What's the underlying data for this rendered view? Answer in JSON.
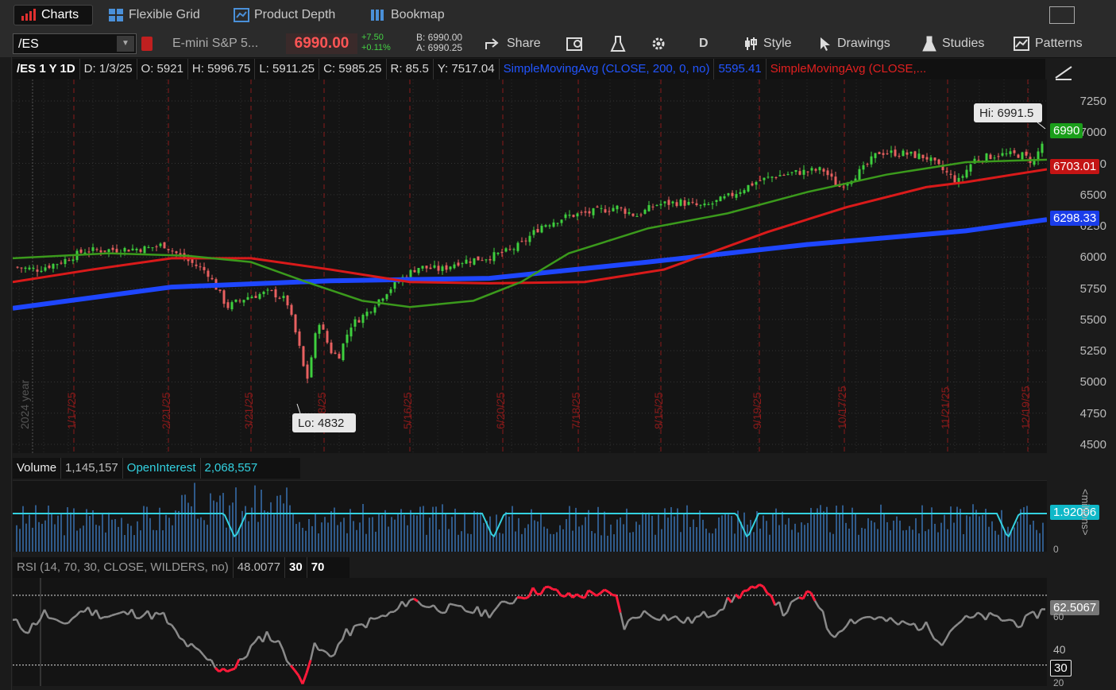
{
  "tabs": [
    {
      "label": "Charts",
      "active": true,
      "icon": "bar-chart-icon"
    },
    {
      "label": "Flexible Grid",
      "active": false,
      "icon": "grid-icon"
    },
    {
      "label": "Product Depth",
      "active": false,
      "icon": "depth-icon"
    },
    {
      "label": "Bookmap",
      "active": false,
      "icon": "bookmap-icon"
    }
  ],
  "toolbar": {
    "symbol": "/ES",
    "description": "E-mini S&P 5...",
    "last_price": "6990.00",
    "net_change": "+7.50",
    "pct_change": "+0.11%",
    "bid": "B: 6990.00",
    "ask": "A: 6990.25",
    "share": "Share",
    "aggregation": "D",
    "style": "Style",
    "drawings": "Drawings",
    "studies": "Studies",
    "patterns": "Patterns"
  },
  "infobar": {
    "title": "/ES 1 Y 1D",
    "date": "D: 1/3/25",
    "open": "O: 5921",
    "high": "H: 5996.75",
    "low": "L: 5911.25",
    "close": "C: 5985.25",
    "range": "R: 85.5",
    "y": "Y: 7517.04",
    "sma200_label": "SimpleMovingAvg (CLOSE, 200, 0, no)",
    "sma200_value": "5595.41",
    "sma_red_label": "SimpleMovingAvg (CLOSE,..."
  },
  "price_axis": {
    "ticks": [
      "7250",
      "7000",
      "6750",
      "6500",
      "6250",
      "6000",
      "5750",
      "5500",
      "5250",
      "5000",
      "4750",
      "4500"
    ],
    "last_badge": "6990",
    "red_badge": "6703.01",
    "blue_badge": "6298.33"
  },
  "annotations": {
    "hi": "Hi: 6991.5",
    "lo": "Lo: 4832"
  },
  "x_labels": [
    "1/17/25",
    "2/21/25",
    "3/21/25",
    "4/18/25",
    "5/16/25",
    "6/20/25",
    "7/18/25",
    "8/15/25",
    "9/19/25",
    "10/17/25",
    "11/21/25",
    "12/19/25"
  ],
  "year_label": "2024 year",
  "volume": {
    "label": "Volume",
    "value": "1,145,157",
    "oi_label": "OpenInterest",
    "oi_value": "2,068,557",
    "badge": "1.92006",
    "unit": "<millions>",
    "zero": "0"
  },
  "rsi": {
    "label": "RSI (14, 70, 30, CLOSE, WILDERS, no)",
    "value": "48.0077",
    "lower": "30",
    "upper": "70",
    "badge": "62.5067",
    "tick_60": "60",
    "tick_40": "40",
    "tick_30": "30",
    "tick_20": "20"
  },
  "colors": {
    "up": "#3ecf3e",
    "down": "#e86060",
    "sma_blue": "#1e46ff",
    "sma_red": "#d91a1a",
    "sma_green": "#3b9a1c",
    "cyan": "#33d1e0"
  }
}
